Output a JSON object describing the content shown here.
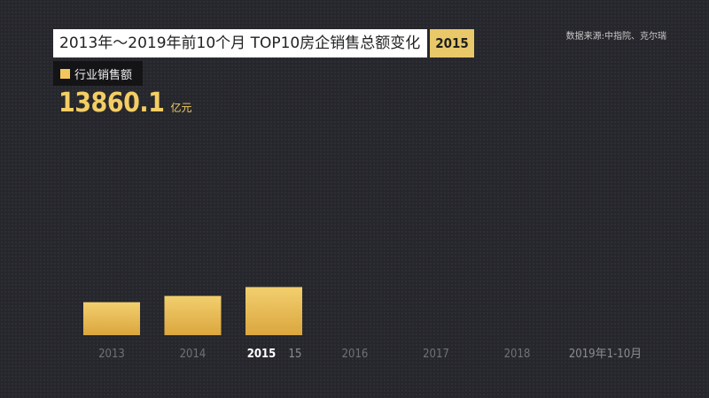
{
  "header": {
    "title": "2013年～2019年前10个月 TOP10房企销售总额变化",
    "current_year": "2015"
  },
  "source": "数据来源:中指院、克尔瑞",
  "legend": {
    "label": "行业销售额",
    "color": "#f2c85c"
  },
  "total": {
    "value": "13860.1",
    "unit": "亿元"
  },
  "colors": {
    "bar_top": "#f2cf6e",
    "bar_bottom": "#dba63e",
    "tick": "#6f7178",
    "tick_active": "#ffffff",
    "tick_secondary": "#8b8d94"
  },
  "chart_data": {
    "type": "bar",
    "categories": [
      "2013",
      "2014",
      "2015",
      "2016",
      "2017",
      "2018",
      "2019年1-10月"
    ],
    "series": [
      {
        "name": "行业销售额",
        "values": [
          9500,
          11300,
          13860.1,
          null,
          null,
          null,
          null
        ]
      }
    ],
    "active_category": "2015",
    "active_category_suffix": "15",
    "ylim": [
      0,
      70000
    ]
  }
}
